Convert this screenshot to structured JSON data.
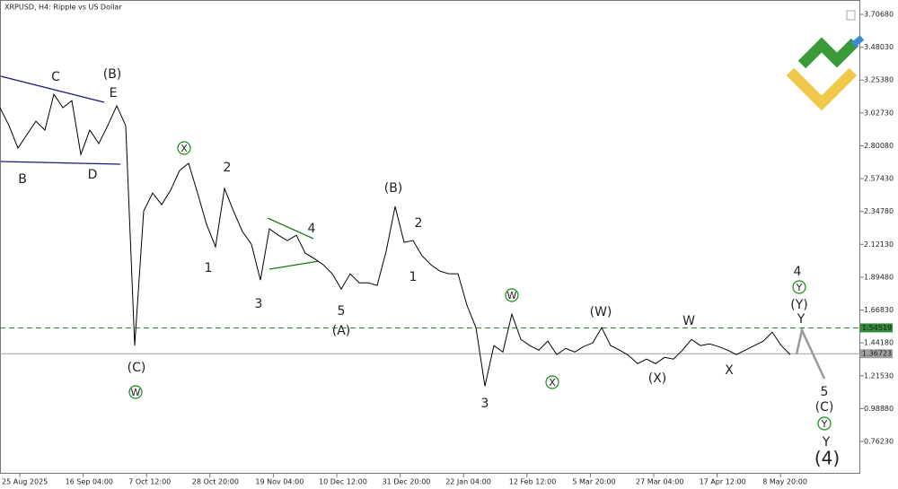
{
  "chart_data": {
    "type": "line",
    "title": "XRPUSD, H4:  Ripple vs US Dollar",
    "x_labels": [
      "25 Aug 2025",
      "16 Sep 04:00",
      "7 Oct 12:00",
      "28 Oct 20:00",
      "19 Nov 04:00",
      "10 Dec 12:00",
      "31 Dec 20:00",
      "22 Jan 04:00",
      "12 Feb 12:00",
      "5 Mar 20:00",
      "27 Mar 04:00",
      "17 Apr 12:00",
      "8 May 20:00"
    ],
    "color": "#000000",
    "values": [
      3.063,
      2.94,
      2.785,
      2.878,
      2.97,
      2.909,
      3.156,
      3.063,
      3.112,
      2.741,
      2.909,
      2.816,
      2.94,
      3.076,
      2.94,
      1.423,
      2.351,
      2.475,
      2.395,
      2.494,
      2.63,
      2.68,
      2.475,
      2.259,
      2.104,
      2.506,
      2.351,
      2.209,
      2.122,
      1.875,
      2.228,
      2.184,
      2.147,
      2.184,
      2.06,
      2.023,
      1.98,
      1.918,
      1.813,
      1.918,
      1.856,
      1.856,
      1.838,
      2.073,
      2.382,
      2.135,
      2.147,
      2.042,
      1.98,
      1.936,
      1.918,
      1.918,
      1.701,
      1.547,
      1.144,
      1.423,
      1.379,
      1.64,
      1.466,
      1.423,
      1.392,
      1.454,
      1.361,
      1.404,
      1.379,
      1.417,
      1.441,
      1.547,
      1.423,
      1.392,
      1.355,
      1.299,
      1.33,
      1.299,
      1.342,
      1.33,
      1.392,
      1.466,
      1.423,
      1.435,
      1.417,
      1.392,
      1.361,
      1.392,
      1.423,
      1.454,
      1.516,
      1.423,
      1.361
    ],
    "ylim": [
      0.5396,
      3.8058
    ],
    "yticks": [
      {
        "value": 3.7068,
        "label": "3.70680"
      },
      {
        "value": 3.4803,
        "label": "3.48030"
      },
      {
        "value": 3.2538,
        "label": "3.25380"
      },
      {
        "value": 3.0273,
        "label": "3.02730"
      },
      {
        "value": 2.8008,
        "label": "2.80080"
      },
      {
        "value": 2.5743,
        "label": "2.57430"
      },
      {
        "value": 2.3478,
        "label": "2.34780"
      },
      {
        "value": 2.1213,
        "label": "2.12130"
      },
      {
        "value": 1.8948,
        "label": "1.89480"
      },
      {
        "value": 1.6683,
        "label": "1.66830"
      },
      {
        "value": 1.4418,
        "label": "1.44180"
      },
      {
        "value": 1.2153,
        "label": "1.21530"
      },
      {
        "value": 0.9888,
        "label": "0.98880"
      },
      {
        "value": 0.7623,
        "label": "0.76230"
      }
    ],
    "levels": [
      {
        "value": 1.54519,
        "color": "#2e8b3a"
      },
      {
        "value": 1.36723,
        "color": "#a0a0a0"
      }
    ],
    "annotations": [
      {
        "text": "C",
        "color": "#8b1a1a"
      },
      {
        "text": "(B)",
        "color": "#1a1a7a"
      },
      {
        "text": "E",
        "color": "#8b1a1a"
      },
      {
        "text": "B",
        "color": "#8b1a1a"
      },
      {
        "text": "D",
        "color": "#8b1a1a"
      },
      {
        "text": "X",
        "color": "#1a8a1a"
      },
      {
        "text": "(C)",
        "color": "#1a1a7a"
      },
      {
        "text": "W",
        "color": "#1a8a1a"
      },
      {
        "text": "2",
        "color": "#8b1a1a"
      },
      {
        "text": "1",
        "color": "#8b1a1a"
      },
      {
        "text": "3",
        "color": "#8b1a1a"
      },
      {
        "text": "4",
        "color": "#8b1a1a"
      },
      {
        "text": "5",
        "color": "#8b1a1a"
      },
      {
        "text": "(A)",
        "color": "#1a1a7a"
      },
      {
        "text": "(B)",
        "color": "#1a1a7a"
      },
      {
        "text": "2",
        "color": "#8b1a1a"
      },
      {
        "text": "1",
        "color": "#8b1a1a"
      },
      {
        "text": "3",
        "color": "#8b1a1a"
      },
      {
        "text": "W",
        "color": "#1a8a1a"
      },
      {
        "text": "X",
        "color": "#1a8a1a"
      },
      {
        "text": "(W)",
        "color": "#1a1a7a"
      },
      {
        "text": "(X)",
        "color": "#1a1a7a"
      },
      {
        "text": "W",
        "color": "#8b1a1a"
      },
      {
        "text": "X",
        "color": "#8b1a1a"
      },
      {
        "text": "4",
        "color": "#8b1a1a"
      },
      {
        "text": "Y",
        "color": "#1a8a1a"
      },
      {
        "text": "(Y)",
        "color": "#1a1a7a"
      },
      {
        "text": "Y",
        "color": "#8b1a1a"
      },
      {
        "text": "5",
        "color": "#8b1a1a"
      },
      {
        "text": "(C)",
        "color": "#1a1a7a"
      },
      {
        "text": "Y",
        "color": "#1a8a1a"
      },
      {
        "text": "Y",
        "color": "#8b1a1a"
      },
      {
        "text": "(4)",
        "color": "#1a1a7a"
      }
    ]
  }
}
